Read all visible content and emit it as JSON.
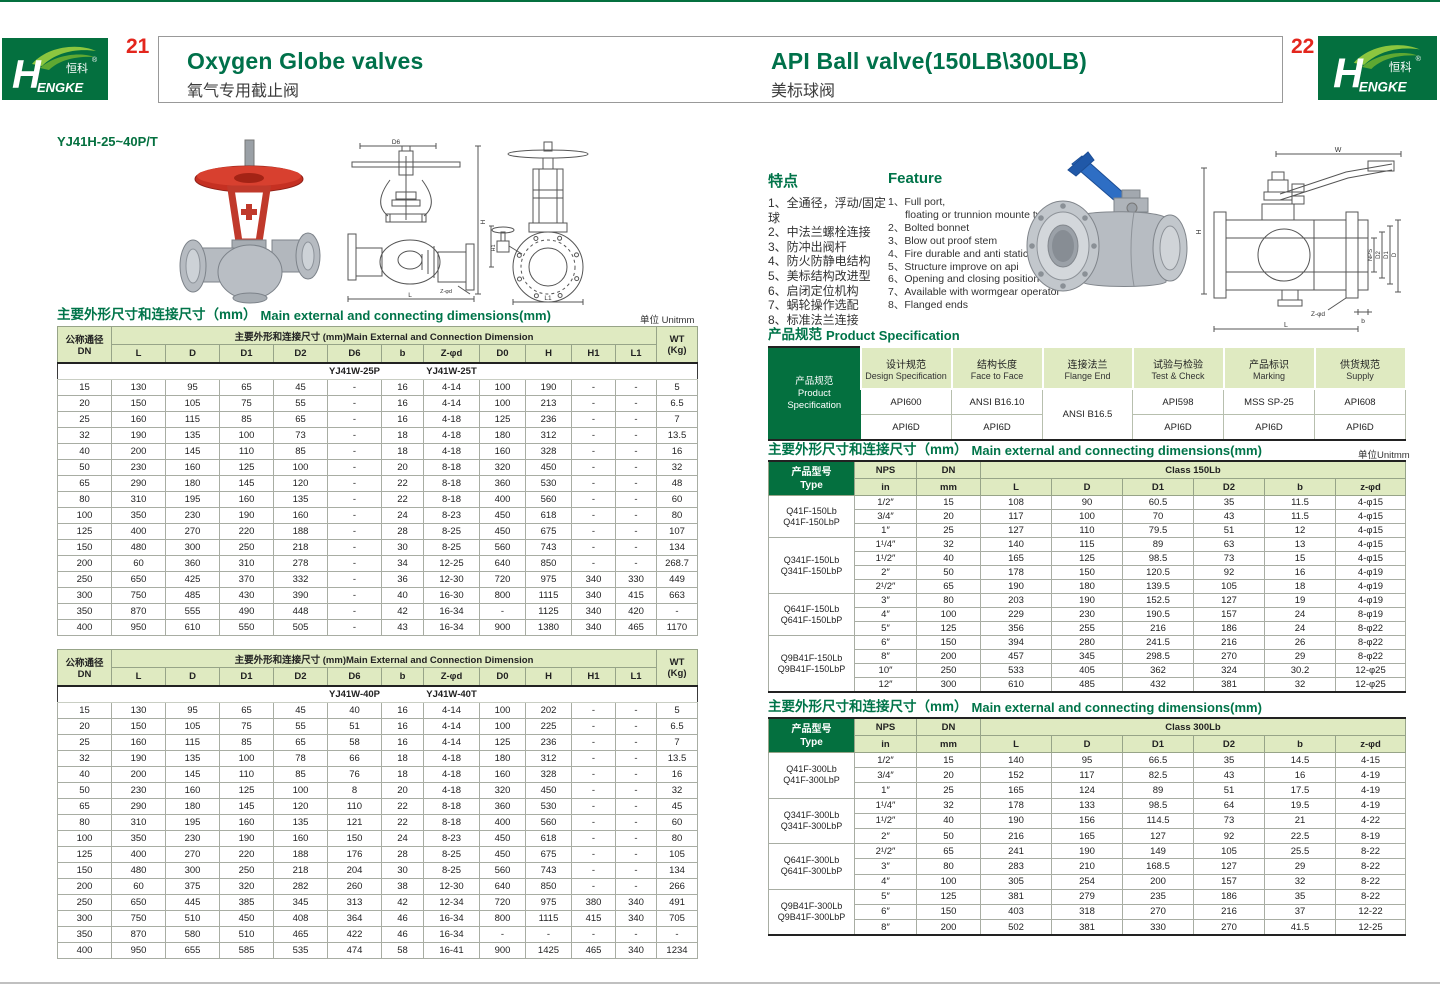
{
  "colors": {
    "brand_green": "#04703f",
    "header_green": "#dfeac1",
    "title_green": "#00714a",
    "page_red": "#e3261d",
    "photo_red": "#c53022",
    "photo_blue": "#2e6ec4"
  },
  "brand": {
    "logo_h": "H",
    "logo_rest": "ENGKE",
    "logo_cn": "恒科",
    "reg": "®"
  },
  "left_page": {
    "page_number": "21",
    "title_en": "Oxygen Globe valves",
    "title_zh": "氧气专用截止阀",
    "model": "YJ41H-25~40P/T",
    "dims_title_zh": "主要外形尺寸和连接尺寸（mm）",
    "dims_title_en": "Main external and connecting dimensions(mm)",
    "unit_label": "单位 Unitmm",
    "header": {
      "dn_zh": "公称通径",
      "dn_en": "DN",
      "span_label": "主要外形和连接尺寸 (mm)Main External and Connection Dimension",
      "wt_line1": "WT",
      "wt_line2": "(Kg)",
      "cols": [
        "L",
        "D",
        "D1",
        "D2",
        "D6",
        "b",
        "Z-φd",
        "D0",
        "H",
        "H1",
        "L1"
      ]
    },
    "table1": {
      "model_p": "YJ41W-25P",
      "model_t": "YJ41W-25T",
      "rows": [
        [
          "15",
          "130",
          "95",
          "65",
          "45",
          "-",
          "16",
          "4-14",
          "100",
          "190",
          "-",
          "-",
          "5"
        ],
        [
          "20",
          "150",
          "105",
          "75",
          "55",
          "-",
          "16",
          "4-14",
          "100",
          "213",
          "-",
          "-",
          "6.5"
        ],
        [
          "25",
          "160",
          "115",
          "85",
          "65",
          "-",
          "16",
          "4-18",
          "125",
          "236",
          "-",
          "-",
          "7"
        ],
        [
          "32",
          "190",
          "135",
          "100",
          "73",
          "-",
          "18",
          "4-18",
          "180",
          "312",
          "-",
          "-",
          "13.5"
        ],
        [
          "40",
          "200",
          "145",
          "110",
          "85",
          "-",
          "18",
          "4-18",
          "160",
          "328",
          "-",
          "-",
          "16"
        ],
        [
          "50",
          "230",
          "160",
          "125",
          "100",
          "-",
          "20",
          "8-18",
          "320",
          "450",
          "-",
          "-",
          "32"
        ],
        [
          "65",
          "290",
          "180",
          "145",
          "120",
          "-",
          "22",
          "8-18",
          "360",
          "530",
          "-",
          "-",
          "48"
        ],
        [
          "80",
          "310",
          "195",
          "160",
          "135",
          "-",
          "22",
          "8-18",
          "400",
          "560",
          "-",
          "-",
          "60"
        ],
        [
          "100",
          "350",
          "230",
          "190",
          "160",
          "-",
          "24",
          "8-23",
          "450",
          "618",
          "-",
          "-",
          "80"
        ],
        [
          "125",
          "400",
          "270",
          "220",
          "188",
          "-",
          "28",
          "8-25",
          "450",
          "675",
          "-",
          "-",
          "107"
        ],
        [
          "150",
          "480",
          "300",
          "250",
          "218",
          "-",
          "30",
          "8-25",
          "560",
          "743",
          "-",
          "-",
          "134"
        ],
        [
          "200",
          "60",
          "360",
          "310",
          "278",
          "-",
          "34",
          "12-25",
          "640",
          "850",
          "-",
          "-",
          "268.7"
        ],
        [
          "250",
          "650",
          "425",
          "370",
          "332",
          "-",
          "36",
          "12-30",
          "720",
          "975",
          "340",
          "330",
          "449"
        ],
        [
          "300",
          "750",
          "485",
          "430",
          "390",
          "-",
          "40",
          "16-30",
          "800",
          "1115",
          "340",
          "415",
          "663"
        ],
        [
          "350",
          "870",
          "555",
          "490",
          "448",
          "-",
          "42",
          "16-34",
          "-",
          "1125",
          "340",
          "420",
          "-"
        ],
        [
          "400",
          "950",
          "610",
          "550",
          "505",
          "-",
          "43",
          "16-34",
          "900",
          "1380",
          "340",
          "465",
          "1170"
        ]
      ]
    },
    "table2": {
      "model_p": "YJ41W-40P",
      "model_t": "YJ41W-40T",
      "rows": [
        [
          "15",
          "130",
          "95",
          "65",
          "45",
          "40",
          "16",
          "4-14",
          "100",
          "202",
          "-",
          "-",
          "5"
        ],
        [
          "20",
          "150",
          "105",
          "75",
          "55",
          "51",
          "16",
          "4-14",
          "100",
          "225",
          "-",
          "-",
          "6.5"
        ],
        [
          "25",
          "160",
          "115",
          "85",
          "65",
          "58",
          "16",
          "4-14",
          "125",
          "236",
          "-",
          "-",
          "7"
        ],
        [
          "32",
          "190",
          "135",
          "100",
          "78",
          "66",
          "18",
          "4-18",
          "180",
          "312",
          "-",
          "-",
          "13.5"
        ],
        [
          "40",
          "200",
          "145",
          "110",
          "85",
          "76",
          "18",
          "4-18",
          "160",
          "328",
          "-",
          "-",
          "16"
        ],
        [
          "50",
          "230",
          "160",
          "125",
          "100",
          "8",
          "20",
          "4-18",
          "320",
          "450",
          "-",
          "-",
          "32"
        ],
        [
          "65",
          "290",
          "180",
          "145",
          "120",
          "110",
          "22",
          "8-18",
          "360",
          "530",
          "-",
          "-",
          "45"
        ],
        [
          "80",
          "310",
          "195",
          "160",
          "135",
          "121",
          "22",
          "8-18",
          "400",
          "560",
          "-",
          "-",
          "60"
        ],
        [
          "100",
          "350",
          "230",
          "190",
          "160",
          "150",
          "24",
          "8-23",
          "450",
          "618",
          "-",
          "-",
          "80"
        ],
        [
          "125",
          "400",
          "270",
          "220",
          "188",
          "176",
          "28",
          "8-25",
          "450",
          "675",
          "-",
          "-",
          "105"
        ],
        [
          "150",
          "480",
          "300",
          "250",
          "218",
          "204",
          "30",
          "8-25",
          "560",
          "743",
          "-",
          "-",
          "134"
        ],
        [
          "200",
          "60",
          "375",
          "320",
          "282",
          "260",
          "38",
          "12-30",
          "640",
          "850",
          "-",
          "-",
          "266"
        ],
        [
          "250",
          "650",
          "445",
          "385",
          "345",
          "313",
          "42",
          "12-34",
          "720",
          "975",
          "380",
          "340",
          "491"
        ],
        [
          "300",
          "750",
          "510",
          "450",
          "408",
          "364",
          "46",
          "16-34",
          "800",
          "1115",
          "415",
          "340",
          "705"
        ],
        [
          "350",
          "870",
          "580",
          "510",
          "465",
          "422",
          "46",
          "16-34",
          "-",
          "-",
          "-",
          "-",
          "-"
        ],
        [
          "400",
          "950",
          "655",
          "585",
          "535",
          "474",
          "58",
          "16-41",
          "900",
          "1425",
          "465",
          "340",
          "1234"
        ]
      ]
    },
    "drawing_labels": {
      "d6": "D6",
      "h": "H",
      "l": "L",
      "zfd": "Z-φd",
      "h1": "H1",
      "l1": "L1"
    }
  },
  "right_page": {
    "page_number": "22",
    "title_en": "API Ball valve(150LB\\300LB)",
    "title_zh": "美标球阀",
    "features_zh": {
      "heading": "特点",
      "items": [
        "1、全通径，浮动/固定球",
        "2、中法兰螺栓连接",
        "3、防冲出阀杆",
        "4、防火防静电结构",
        "5、美标结构改进型",
        "6、启闭定位机构",
        "7、蜗轮操作选配",
        "8、标准法兰连接"
      ]
    },
    "features_en": {
      "heading": "Feature",
      "items": [
        [
          "1、Full port,",
          "floating or trunnion mounte type"
        ],
        [
          "2、Bolted bonnet"
        ],
        [
          "3、Blow out proof stem"
        ],
        [
          "4、Fire durable and anti static safety"
        ],
        [
          "5、Structure improve on api"
        ],
        [
          "6、Opening and closing position"
        ],
        [
          "7、Available with wormgear operator"
        ],
        [
          "8、Flanged ends"
        ]
      ]
    },
    "spec": {
      "section_zh": "产品规范",
      "section_en": "Product Specification",
      "corner_zh": "产品规范",
      "corner_en1": "Product",
      "corner_en2": "Specification",
      "headers": [
        {
          "zh": "设计规范",
          "en": "Design Specification"
        },
        {
          "zh": "结构长度",
          "en": "Face to Face"
        },
        {
          "zh": "连接法兰",
          "en": "Flange End"
        },
        {
          "zh": "试验与检验",
          "en": "Test & Check"
        },
        {
          "zh": "产品标识",
          "en": "Marking"
        },
        {
          "zh": "供货规范",
          "en": "Supply"
        }
      ],
      "row1": [
        "API600",
        "ANSI B16.10",
        "API598",
        "MSS SP-25",
        "API608"
      ],
      "flange_value": "ANSI B16.5",
      "row2": [
        "API6D",
        "API6D",
        "API6D",
        "API6D",
        "API6D"
      ]
    },
    "dims150": {
      "title_zh": "主要外形尺寸和连接尺寸（mm）",
      "title_en": "Main external and connecting dimensions(mm)",
      "unit_label": "单位Unitmm",
      "type_zh": "产品型号",
      "type_en": "Type",
      "nps": "NPS",
      "nps_unit": "in",
      "dn": "DN",
      "dn_unit": "mm",
      "class_label": "Class 150Lb",
      "cols": [
        "L",
        "D",
        "D1",
        "D2",
        "b",
        "z-φd"
      ],
      "type_groups": [
        {
          "start": 0,
          "span": 3,
          "labels": [
            "Q41F-150Lb",
            "Q41F-150LbP"
          ]
        },
        {
          "start": 3,
          "span": 4,
          "labels": [
            "Q341F-150Lb",
            "Q341F-150LbP"
          ]
        },
        {
          "start": 7,
          "span": 3,
          "labels": [
            "Q641F-150Lb",
            "Q641F-150LbP"
          ]
        },
        {
          "start": 10,
          "span": 4,
          "labels": [
            "Q9B41F-150Lb",
            "Q9B41F-150LbP"
          ]
        }
      ],
      "rows": [
        [
          "1/2″",
          "15",
          "108",
          "90",
          "60.5",
          "35",
          "11.5",
          "4-φ15"
        ],
        [
          "3/4″",
          "20",
          "117",
          "100",
          "70",
          "43",
          "11.5",
          "4-φ15"
        ],
        [
          "1″",
          "25",
          "127",
          "110",
          "79.5",
          "51",
          "12",
          "4-φ15"
        ],
        [
          "1¹/4″",
          "32",
          "140",
          "115",
          "89",
          "63",
          "13",
          "4-φ15"
        ],
        [
          "1¹/2″",
          "40",
          "165",
          "125",
          "98.5",
          "73",
          "15",
          "4-φ15"
        ],
        [
          "2″",
          "50",
          "178",
          "150",
          "120.5",
          "92",
          "16",
          "4-φ19"
        ],
        [
          "2¹/2″",
          "65",
          "190",
          "180",
          "139.5",
          "105",
          "18",
          "4-φ19"
        ],
        [
          "3″",
          "80",
          "203",
          "190",
          "152.5",
          "127",
          "19",
          "4-φ19"
        ],
        [
          "4″",
          "100",
          "229",
          "230",
          "190.5",
          "157",
          "24",
          "8-φ19"
        ],
        [
          "5″",
          "125",
          "356",
          "255",
          "216",
          "186",
          "24",
          "8-φ22"
        ],
        [
          "6″",
          "150",
          "394",
          "280",
          "241.5",
          "216",
          "26",
          "8-φ22"
        ],
        [
          "8″",
          "200",
          "457",
          "345",
          "298.5",
          "270",
          "29",
          "8-φ22"
        ],
        [
          "10″",
          "250",
          "533",
          "405",
          "362",
          "324",
          "30.2",
          "12-φ25"
        ],
        [
          "12″",
          "300",
          "610",
          "485",
          "432",
          "381",
          "32",
          "12-φ25"
        ]
      ]
    },
    "dims300": {
      "title_zh": "主要外形尺寸和连接尺寸（mm）",
      "title_en": "Main external and connecting dimensions(mm)",
      "type_zh": "产品型号",
      "type_en": "Type",
      "nps": "NPS",
      "nps_unit": "in",
      "dn": "DN",
      "dn_unit": "mm",
      "class_label": "Class 300Lb",
      "cols": [
        "L",
        "D",
        "D1",
        "D2",
        "b",
        "z-φd"
      ],
      "type_groups": [
        {
          "start": 0,
          "span": 3,
          "labels": [
            "Q41F-300Lb",
            "Q41F-300LbP"
          ]
        },
        {
          "start": 3,
          "span": 3,
          "labels": [
            "Q341F-300Lb",
            "Q341F-300LbP"
          ]
        },
        {
          "start": 6,
          "span": 3,
          "labels": [
            "Q641F-300Lb",
            "Q641F-300LbP"
          ]
        },
        {
          "start": 9,
          "span": 3,
          "labels": [
            "Q9B41F-300Lb",
            "Q9B41F-300LbP"
          ]
        }
      ],
      "rows": [
        [
          "1/2″",
          "15",
          "140",
          "95",
          "66.5",
          "35",
          "14.5",
          "4-15"
        ],
        [
          "3/4″",
          "20",
          "152",
          "117",
          "82.5",
          "43",
          "16",
          "4-19"
        ],
        [
          "1″",
          "25",
          "165",
          "124",
          "89",
          "51",
          "17.5",
          "4-19"
        ],
        [
          "1¹/4″",
          "32",
          "178",
          "133",
          "98.5",
          "64",
          "19.5",
          "4-19"
        ],
        [
          "1¹/2″",
          "40",
          "190",
          "156",
          "114.5",
          "73",
          "21",
          "4-22"
        ],
        [
          "2″",
          "50",
          "216",
          "165",
          "127",
          "92",
          "22.5",
          "8-19"
        ],
        [
          "2¹/2″",
          "65",
          "241",
          "190",
          "149",
          "105",
          "25.5",
          "8-22"
        ],
        [
          "3″",
          "80",
          "283",
          "210",
          "168.5",
          "127",
          "29",
          "8-22"
        ],
        [
          "4″",
          "100",
          "305",
          "254",
          "200",
          "157",
          "32",
          "8-22"
        ],
        [
          "5″",
          "125",
          "381",
          "279",
          "235",
          "186",
          "35",
          "8-22"
        ],
        [
          "6″",
          "150",
          "403",
          "318",
          "270",
          "216",
          "37",
          "12-22"
        ],
        [
          "8″",
          "200",
          "502",
          "381",
          "330",
          "270",
          "41.5",
          "12-25"
        ]
      ]
    },
    "drawing_labels": {
      "w": "W",
      "h": "H",
      "nps": "NPS",
      "d2": "D2",
      "d1": "D1",
      "d": "D",
      "zfd": "Z-φd",
      "b": "b",
      "l": "L"
    }
  }
}
